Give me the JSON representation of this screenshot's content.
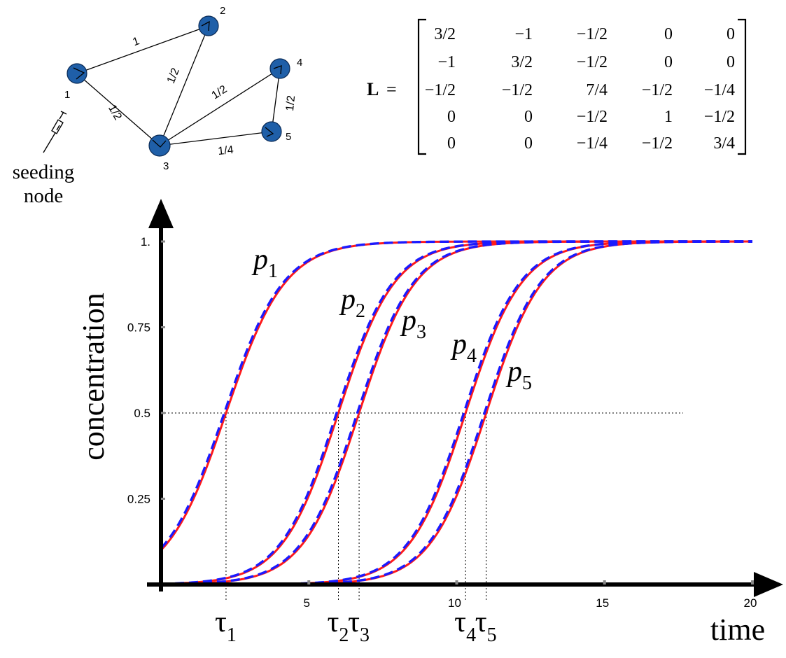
{
  "network": {
    "nodes": [
      {
        "id": 1,
        "label": "1"
      },
      {
        "id": 2,
        "label": "2"
      },
      {
        "id": 3,
        "label": "3"
      },
      {
        "id": 4,
        "label": "4"
      },
      {
        "id": 5,
        "label": "5"
      }
    ],
    "edges": [
      {
        "from": 1,
        "to": 2,
        "label": "1"
      },
      {
        "from": 1,
        "to": 3,
        "label": "1/2"
      },
      {
        "from": 2,
        "to": 3,
        "label": "1/2"
      },
      {
        "from": 3,
        "to": 4,
        "label": "1/2"
      },
      {
        "from": 4,
        "to": 5,
        "label": "1/2"
      },
      {
        "from": 3,
        "to": 5,
        "label": "1/4"
      }
    ],
    "seeding_label_line1": "seeding",
    "seeding_label_line2": "node",
    "node_color": "#1f5fa8"
  },
  "matrix": {
    "name": "L",
    "equals": "=",
    "rows": [
      [
        "3/2",
        "−1",
        "−1/2",
        "0",
        "0"
      ],
      [
        "−1",
        "3/2",
        "−1/2",
        "0",
        "0"
      ],
      [
        "−1/2",
        "−1/2",
        "7/4",
        "−1/2",
        "−1/4"
      ],
      [
        "0",
        "0",
        "−1/2",
        "1",
        "−1/2"
      ],
      [
        "0",
        "0",
        "−1/4",
        "−1/2",
        "3/4"
      ]
    ]
  },
  "chart_data": {
    "type": "line",
    "xlabel": "time",
    "ylabel": "concentration",
    "xlim": [
      0,
      20
    ],
    "ylim": [
      0,
      1
    ],
    "x_ticks": [
      {
        "value": 5,
        "label": "5"
      },
      {
        "value": 10,
        "label": "10"
      },
      {
        "value": 15,
        "label": "15"
      },
      {
        "value": 20,
        "label": "20"
      }
    ],
    "y_ticks": [
      {
        "value": 0.25,
        "label": "0.25"
      },
      {
        "value": 0.5,
        "label": "0.5"
      },
      {
        "value": 0.75,
        "label": "0.75"
      },
      {
        "value": 1,
        "label": "1."
      }
    ],
    "threshold": 0.5,
    "series_styles": {
      "solid_color": "#ff1a1a",
      "dashed_color": "#1a1aff"
    },
    "series": [
      {
        "name": "p",
        "subscript": "1",
        "p0": 0.1,
        "t_half": 2.2,
        "rate": 1.0
      },
      {
        "name": "p",
        "subscript": "2",
        "p0": 0.0,
        "t_half": 6.0,
        "rate": 1.05
      },
      {
        "name": "p",
        "subscript": "3",
        "p0": 0.0,
        "t_half": 6.7,
        "rate": 1.05
      },
      {
        "name": "p",
        "subscript": "4",
        "p0": 0.0,
        "t_half": 10.3,
        "rate": 1.05
      },
      {
        "name": "p",
        "subscript": "5",
        "p0": 0.0,
        "t_half": 11.0,
        "rate": 1.05
      }
    ],
    "taus": [
      {
        "symbol": "τ",
        "subscript": "1",
        "t": 2.2
      },
      {
        "symbol": "τ",
        "subscript": "2",
        "t": 6.0
      },
      {
        "symbol": "τ",
        "subscript": "3",
        "t": 6.7
      },
      {
        "symbol": "τ",
        "subscript": "4",
        "t": 10.3
      },
      {
        "symbol": "τ",
        "subscript": "5",
        "t": 11.0
      }
    ]
  }
}
